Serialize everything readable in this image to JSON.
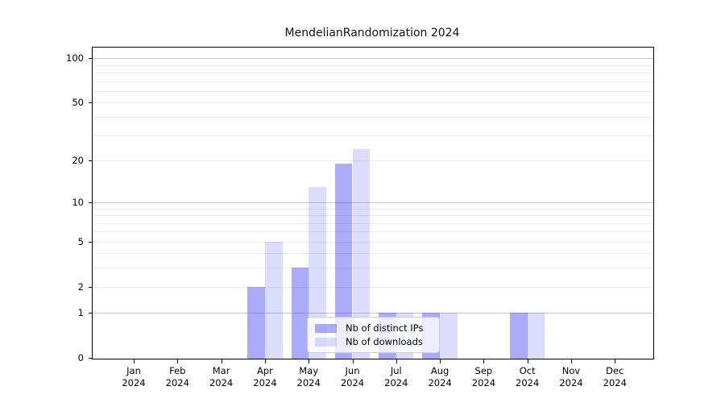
{
  "chart_data": {
    "type": "bar",
    "title": "MendelianRandomization 2024",
    "categories": [
      "Jan",
      "Feb",
      "Mar",
      "Apr",
      "May",
      "Jun",
      "Jul",
      "Aug",
      "Sep",
      "Oct",
      "Nov",
      "Dec"
    ],
    "category_year": "2024",
    "series": [
      {
        "name": "Nb of distinct IPs",
        "color": "rgba(68,68,238,0.45)",
        "approx_hex": "#aaaaf5",
        "values": [
          0,
          0,
          0,
          2,
          3,
          19,
          1,
          1,
          0,
          1,
          0,
          0
        ]
      },
      {
        "name": "Nb of downloads",
        "color": "rgba(68,68,238,0.19)",
        "approx_hex": "#dcdcf8",
        "values": [
          0,
          0,
          0,
          5,
          13,
          24,
          1,
          1,
          0,
          1,
          0,
          0
        ]
      }
    ],
    "yticks": [
      0,
      1,
      2,
      5,
      10,
      20,
      50,
      100
    ],
    "yscale": "log1p",
    "ylim": [
      0,
      119
    ],
    "xlabel": "",
    "ylabel": "",
    "grid": "horizontal",
    "legend_position": "lower-center-inside"
  }
}
